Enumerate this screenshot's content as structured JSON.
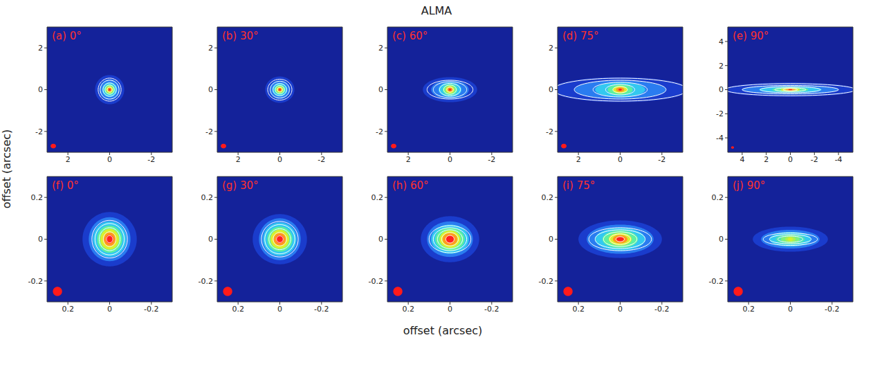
{
  "title": "ALMA",
  "x_label": "offset (arcsec)",
  "y_label": "offset (arcsec)",
  "chart_data": [
    {
      "type": "contour",
      "title": "(a) 0°",
      "xlim": [
        3,
        -3
      ],
      "ylim": [
        -3,
        3
      ],
      "xticks": [
        2,
        0,
        -2
      ],
      "yticks": [
        -2,
        0,
        2
      ],
      "emission": [
        {
          "rx": 0.7,
          "ry": 0.7,
          "color": "#1a3ccc"
        },
        {
          "rx": 0.5,
          "ry": 0.5,
          "color": "#2a7cf0"
        },
        {
          "rx": 0.35,
          "ry": 0.35,
          "color": "#33c8f0"
        },
        {
          "rx": 0.25,
          "ry": 0.25,
          "color": "#5ef0a0"
        },
        {
          "rx": 0.17,
          "ry": 0.17,
          "color": "#d8f030"
        },
        {
          "rx": 0.1,
          "ry": 0.1,
          "color": "#ff9a20"
        },
        {
          "rx": 0.05,
          "ry": 0.05,
          "color": "#ff2020"
        }
      ],
      "contours": [
        {
          "rx": 0.55,
          "ry": 0.55
        },
        {
          "rx": 0.45,
          "ry": 0.45
        },
        {
          "rx": 0.32,
          "ry": 0.32
        },
        {
          "rx": 0.22,
          "ry": 0.22
        },
        {
          "rx": 0.12,
          "ry": 0.12
        }
      ],
      "beam": {
        "x": 2.7,
        "y": -2.7,
        "rx": 0.13,
        "ry": 0.11,
        "color": "#ff1a1a"
      }
    },
    {
      "type": "contour",
      "title": "(b) 30°",
      "xlim": [
        3,
        -3
      ],
      "ylim": [
        -3,
        3
      ],
      "xticks": [
        2,
        0,
        -2
      ],
      "yticks": [
        -2,
        0,
        2
      ],
      "emission": [
        {
          "rx": 0.7,
          "ry": 0.63,
          "color": "#1a3ccc"
        },
        {
          "rx": 0.5,
          "ry": 0.45,
          "color": "#2a7cf0"
        },
        {
          "rx": 0.35,
          "ry": 0.32,
          "color": "#33c8f0"
        },
        {
          "rx": 0.25,
          "ry": 0.23,
          "color": "#5ef0a0"
        },
        {
          "rx": 0.17,
          "ry": 0.15,
          "color": "#d8f030"
        },
        {
          "rx": 0.1,
          "ry": 0.09,
          "color": "#ff9a20"
        },
        {
          "rx": 0.05,
          "ry": 0.045,
          "color": "#ff2020"
        }
      ],
      "contours": [
        {
          "rx": 0.58,
          "ry": 0.5
        },
        {
          "rx": 0.46,
          "ry": 0.4
        },
        {
          "rx": 0.33,
          "ry": 0.29
        },
        {
          "rx": 0.22,
          "ry": 0.2
        },
        {
          "rx": 0.12,
          "ry": 0.11
        }
      ],
      "beam": {
        "x": 2.7,
        "y": -2.7,
        "rx": 0.13,
        "ry": 0.11,
        "color": "#ff1a1a"
      }
    },
    {
      "type": "contour",
      "title": "(c) 60°",
      "xlim": [
        3,
        -3
      ],
      "ylim": [
        -3,
        3
      ],
      "xticks": [
        2,
        0,
        -2
      ],
      "yticks": [
        -2,
        0,
        2
      ],
      "emission": [
        {
          "rx": 1.3,
          "ry": 0.6,
          "color": "#1a3ccc"
        },
        {
          "rx": 0.9,
          "ry": 0.45,
          "color": "#2a7cf0"
        },
        {
          "rx": 0.55,
          "ry": 0.35,
          "color": "#33c8f0"
        },
        {
          "rx": 0.35,
          "ry": 0.27,
          "color": "#5ef0a0"
        },
        {
          "rx": 0.22,
          "ry": 0.18,
          "color": "#d8f030"
        },
        {
          "rx": 0.13,
          "ry": 0.11,
          "color": "#ff9a20"
        },
        {
          "rx": 0.06,
          "ry": 0.05,
          "color": "#ff2020"
        }
      ],
      "contours": [
        {
          "rx": 1.1,
          "ry": 0.45
        },
        {
          "rx": 0.8,
          "ry": 0.38
        },
        {
          "rx": 0.5,
          "ry": 0.3
        },
        {
          "rx": 0.3,
          "ry": 0.22
        },
        {
          "rx": 0.15,
          "ry": 0.12
        }
      ],
      "beam": {
        "x": 2.7,
        "y": -2.7,
        "rx": 0.13,
        "ry": 0.11,
        "color": "#ff1a1a"
      }
    },
    {
      "type": "contour",
      "title": "(d) 75°",
      "xlim": [
        3,
        -3
      ],
      "ylim": [
        -3,
        3
      ],
      "xticks": [
        2,
        0,
        -2
      ],
      "yticks": [
        -2,
        0,
        2
      ],
      "emission": [
        {
          "rx": 3.3,
          "ry": 0.6,
          "color": "#1a3ccc"
        },
        {
          "rx": 2.2,
          "ry": 0.45,
          "color": "#2a7cf0"
        },
        {
          "rx": 1.2,
          "ry": 0.35,
          "color": "#33c8f0"
        },
        {
          "rx": 0.6,
          "ry": 0.25,
          "color": "#5ef0a0"
        },
        {
          "rx": 0.35,
          "ry": 0.18,
          "color": "#d8f030"
        },
        {
          "rx": 0.2,
          "ry": 0.11,
          "color": "#ff9a20"
        },
        {
          "rx": 0.08,
          "ry": 0.05,
          "color": "#ff2020"
        }
      ],
      "contours": [
        {
          "rx": 3.2,
          "ry": 0.55
        },
        {
          "rx": 2.2,
          "ry": 0.45
        },
        {
          "rx": 1.3,
          "ry": 0.35
        },
        {
          "rx": 0.7,
          "ry": 0.25
        },
        {
          "rx": 0.35,
          "ry": 0.15
        }
      ],
      "beam": {
        "x": 2.7,
        "y": -2.7,
        "rx": 0.13,
        "ry": 0.11,
        "color": "#ff1a1a"
      }
    },
    {
      "type": "contour",
      "title": "(e) 90°",
      "xlim": [
        5.2,
        -5.2
      ],
      "ylim": [
        -5.2,
        5.2
      ],
      "xticks": [
        4,
        2,
        0,
        -2,
        -4
      ],
      "yticks": [
        -4,
        -2,
        0,
        2,
        4
      ],
      "emission": [
        {
          "rx": 5.5,
          "ry": 0.6,
          "color": "#1a3ccc"
        },
        {
          "rx": 4,
          "ry": 0.4,
          "color": "#2a7cf0"
        },
        {
          "rx": 2.6,
          "ry": 0.28,
          "color": "#33c8f0"
        },
        {
          "rx": 1.5,
          "ry": 0.2,
          "color": "#5ef0a0"
        },
        {
          "rx": 0.8,
          "ry": 0.14,
          "color": "#d8f030"
        },
        {
          "rx": 0.4,
          "ry": 0.09,
          "color": "#ff9a20"
        },
        {
          "rx": 0.15,
          "ry": 0.05,
          "color": "#ff2020"
        }
      ],
      "contours": [
        {
          "rx": 5.4,
          "ry": 0.5
        },
        {
          "rx": 4,
          "ry": 0.35
        },
        {
          "rx": 2.5,
          "ry": 0.25
        },
        {
          "rx": 1.3,
          "ry": 0.15
        },
        {
          "rx": 0.6,
          "ry": 0.1
        }
      ],
      "beam": {
        "x": 4.8,
        "y": -4.8,
        "rx": 0.12,
        "ry": 0.1,
        "color": "#ff1a1a"
      }
    },
    {
      "type": "contour",
      "title": "(f) 0°",
      "xlim": [
        0.3,
        -0.3
      ],
      "ylim": [
        -0.3,
        0.3
      ],
      "xticks": [
        0.2,
        0,
        -0.2
      ],
      "yticks": [
        -0.2,
        0,
        0.2
      ],
      "emission": [
        {
          "rx": 0.13,
          "ry": 0.13,
          "color": "#1a3ccc"
        },
        {
          "rx": 0.1,
          "ry": 0.105,
          "color": "#2a7cf0"
        },
        {
          "rx": 0.08,
          "ry": 0.085,
          "color": "#33c8f0"
        },
        {
          "rx": 0.06,
          "ry": 0.065,
          "color": "#5ef0a0"
        },
        {
          "rx": 0.045,
          "ry": 0.05,
          "color": "#d8f030"
        },
        {
          "rx": 0.03,
          "ry": 0.033,
          "color": "#ff9a20"
        },
        {
          "rx": 0.018,
          "ry": 0.02,
          "color": "#ff2020"
        }
      ],
      "contours": [
        {
          "rx": 0.085,
          "ry": 0.09
        },
        {
          "rx": 0.07,
          "ry": 0.075
        },
        {
          "rx": 0.05,
          "ry": 0.055
        },
        {
          "rx": 0.03,
          "ry": 0.035
        },
        {
          "rx": 0.015,
          "ry": 0.017
        }
      ],
      "beam": {
        "x": 0.25,
        "y": -0.25,
        "rx": 0.022,
        "ry": 0.022,
        "color": "#ff1a1a"
      }
    },
    {
      "type": "contour",
      "title": "(g) 30°",
      "xlim": [
        0.3,
        -0.3
      ],
      "ylim": [
        -0.3,
        0.3
      ],
      "xticks": [
        0.2,
        0,
        -0.2
      ],
      "yticks": [
        -0.2,
        0,
        0.2
      ],
      "emission": [
        {
          "rx": 0.13,
          "ry": 0.12,
          "color": "#1a3ccc"
        },
        {
          "rx": 0.1,
          "ry": 0.1,
          "color": "#2a7cf0"
        },
        {
          "rx": 0.08,
          "ry": 0.08,
          "color": "#33c8f0"
        },
        {
          "rx": 0.06,
          "ry": 0.06,
          "color": "#5ef0a0"
        },
        {
          "rx": 0.045,
          "ry": 0.046,
          "color": "#d8f030"
        },
        {
          "rx": 0.03,
          "ry": 0.031,
          "color": "#ff9a20"
        },
        {
          "rx": 0.018,
          "ry": 0.019,
          "color": "#ff2020"
        }
      ],
      "contours": [
        {
          "rx": 0.088,
          "ry": 0.085
        },
        {
          "rx": 0.072,
          "ry": 0.07
        },
        {
          "rx": 0.052,
          "ry": 0.05
        },
        {
          "rx": 0.032,
          "ry": 0.032
        },
        {
          "rx": 0.016,
          "ry": 0.016
        }
      ],
      "beam": {
        "x": 0.25,
        "y": -0.25,
        "rx": 0.022,
        "ry": 0.022,
        "color": "#ff1a1a"
      }
    },
    {
      "type": "contour",
      "title": "(h) 60°",
      "xlim": [
        0.3,
        -0.3
      ],
      "ylim": [
        -0.3,
        0.3
      ],
      "xticks": [
        0.2,
        0,
        -0.2
      ],
      "yticks": [
        -0.2,
        0,
        0.2
      ],
      "emission": [
        {
          "rx": 0.14,
          "ry": 0.11,
          "color": "#1a3ccc"
        },
        {
          "rx": 0.11,
          "ry": 0.085,
          "color": "#2a7cf0"
        },
        {
          "rx": 0.09,
          "ry": 0.07,
          "color": "#33c8f0"
        },
        {
          "rx": 0.07,
          "ry": 0.055,
          "color": "#5ef0a0"
        },
        {
          "rx": 0.05,
          "ry": 0.042,
          "color": "#d8f030"
        },
        {
          "rx": 0.035,
          "ry": 0.03,
          "color": "#ff9a20"
        },
        {
          "rx": 0.02,
          "ry": 0.018,
          "color": "#ff2020"
        }
      ],
      "contours": [
        {
          "rx": 0.1,
          "ry": 0.065
        },
        {
          "rx": 0.08,
          "ry": 0.055
        },
        {
          "rx": 0.06,
          "ry": 0.045
        },
        {
          "rx": 0.04,
          "ry": 0.032
        },
        {
          "rx": 0.02,
          "ry": 0.018
        }
      ],
      "beam": {
        "x": 0.25,
        "y": -0.25,
        "rx": 0.022,
        "ry": 0.022,
        "color": "#ff1a1a"
      }
    },
    {
      "type": "contour",
      "title": "(i) 75°",
      "xlim": [
        0.3,
        -0.3
      ],
      "ylim": [
        -0.3,
        0.3
      ],
      "xticks": [
        0.2,
        0,
        -0.2
      ],
      "yticks": [
        -0.2,
        0,
        0.2
      ],
      "emission": [
        {
          "rx": 0.2,
          "ry": 0.09,
          "color": "#1a3ccc"
        },
        {
          "rx": 0.16,
          "ry": 0.07,
          "color": "#2a7cf0"
        },
        {
          "rx": 0.12,
          "ry": 0.055,
          "color": "#33c8f0"
        },
        {
          "rx": 0.085,
          "ry": 0.042,
          "color": "#5ef0a0"
        },
        {
          "rx": 0.055,
          "ry": 0.03,
          "color": "#d8f030"
        },
        {
          "rx": 0.035,
          "ry": 0.02,
          "color": "#ff9a20"
        },
        {
          "rx": 0.018,
          "ry": 0.012,
          "color": "#ff2020"
        }
      ],
      "contours": [
        {
          "rx": 0.15,
          "ry": 0.055
        },
        {
          "rx": 0.12,
          "ry": 0.045
        },
        {
          "rx": 0.08,
          "ry": 0.035
        },
        {
          "rx": 0.05,
          "ry": 0.025
        },
        {
          "rx": 0.02,
          "ry": 0.012
        }
      ],
      "beam": {
        "x": 0.25,
        "y": -0.25,
        "rx": 0.022,
        "ry": 0.022,
        "color": "#ff1a1a"
      }
    },
    {
      "type": "contour",
      "title": "(j) 90°",
      "xlim": [
        0.3,
        -0.3
      ],
      "ylim": [
        -0.3,
        0.3
      ],
      "xticks": [
        0.2,
        0,
        -0.2
      ],
      "yticks": [
        -0.2,
        0,
        0.2
      ],
      "emission": [
        {
          "rx": 0.18,
          "ry": 0.06,
          "color": "#1a3ccc"
        },
        {
          "rx": 0.14,
          "ry": 0.045,
          "color": "#2a7cf0"
        },
        {
          "rx": 0.1,
          "ry": 0.035,
          "color": "#33c8f0"
        },
        {
          "rx": 0.07,
          "ry": 0.025,
          "color": "#4ee0b8"
        },
        {
          "rx": 0.045,
          "ry": 0.018,
          "color": "#7ef080"
        },
        {
          "rx": 0.025,
          "ry": 0.012,
          "color": "#b0f050"
        },
        {
          "rx": 0.012,
          "ry": 0.008,
          "color": "#d8f030"
        }
      ],
      "contours": [
        {
          "rx": 0.13,
          "ry": 0.03
        },
        {
          "rx": 0.1,
          "ry": 0.022
        },
        {
          "rx": 0.06,
          "ry": 0.015
        }
      ],
      "beam": {
        "x": 0.25,
        "y": -0.25,
        "rx": 0.022,
        "ry": 0.022,
        "color": "#ff1a1a"
      }
    }
  ]
}
